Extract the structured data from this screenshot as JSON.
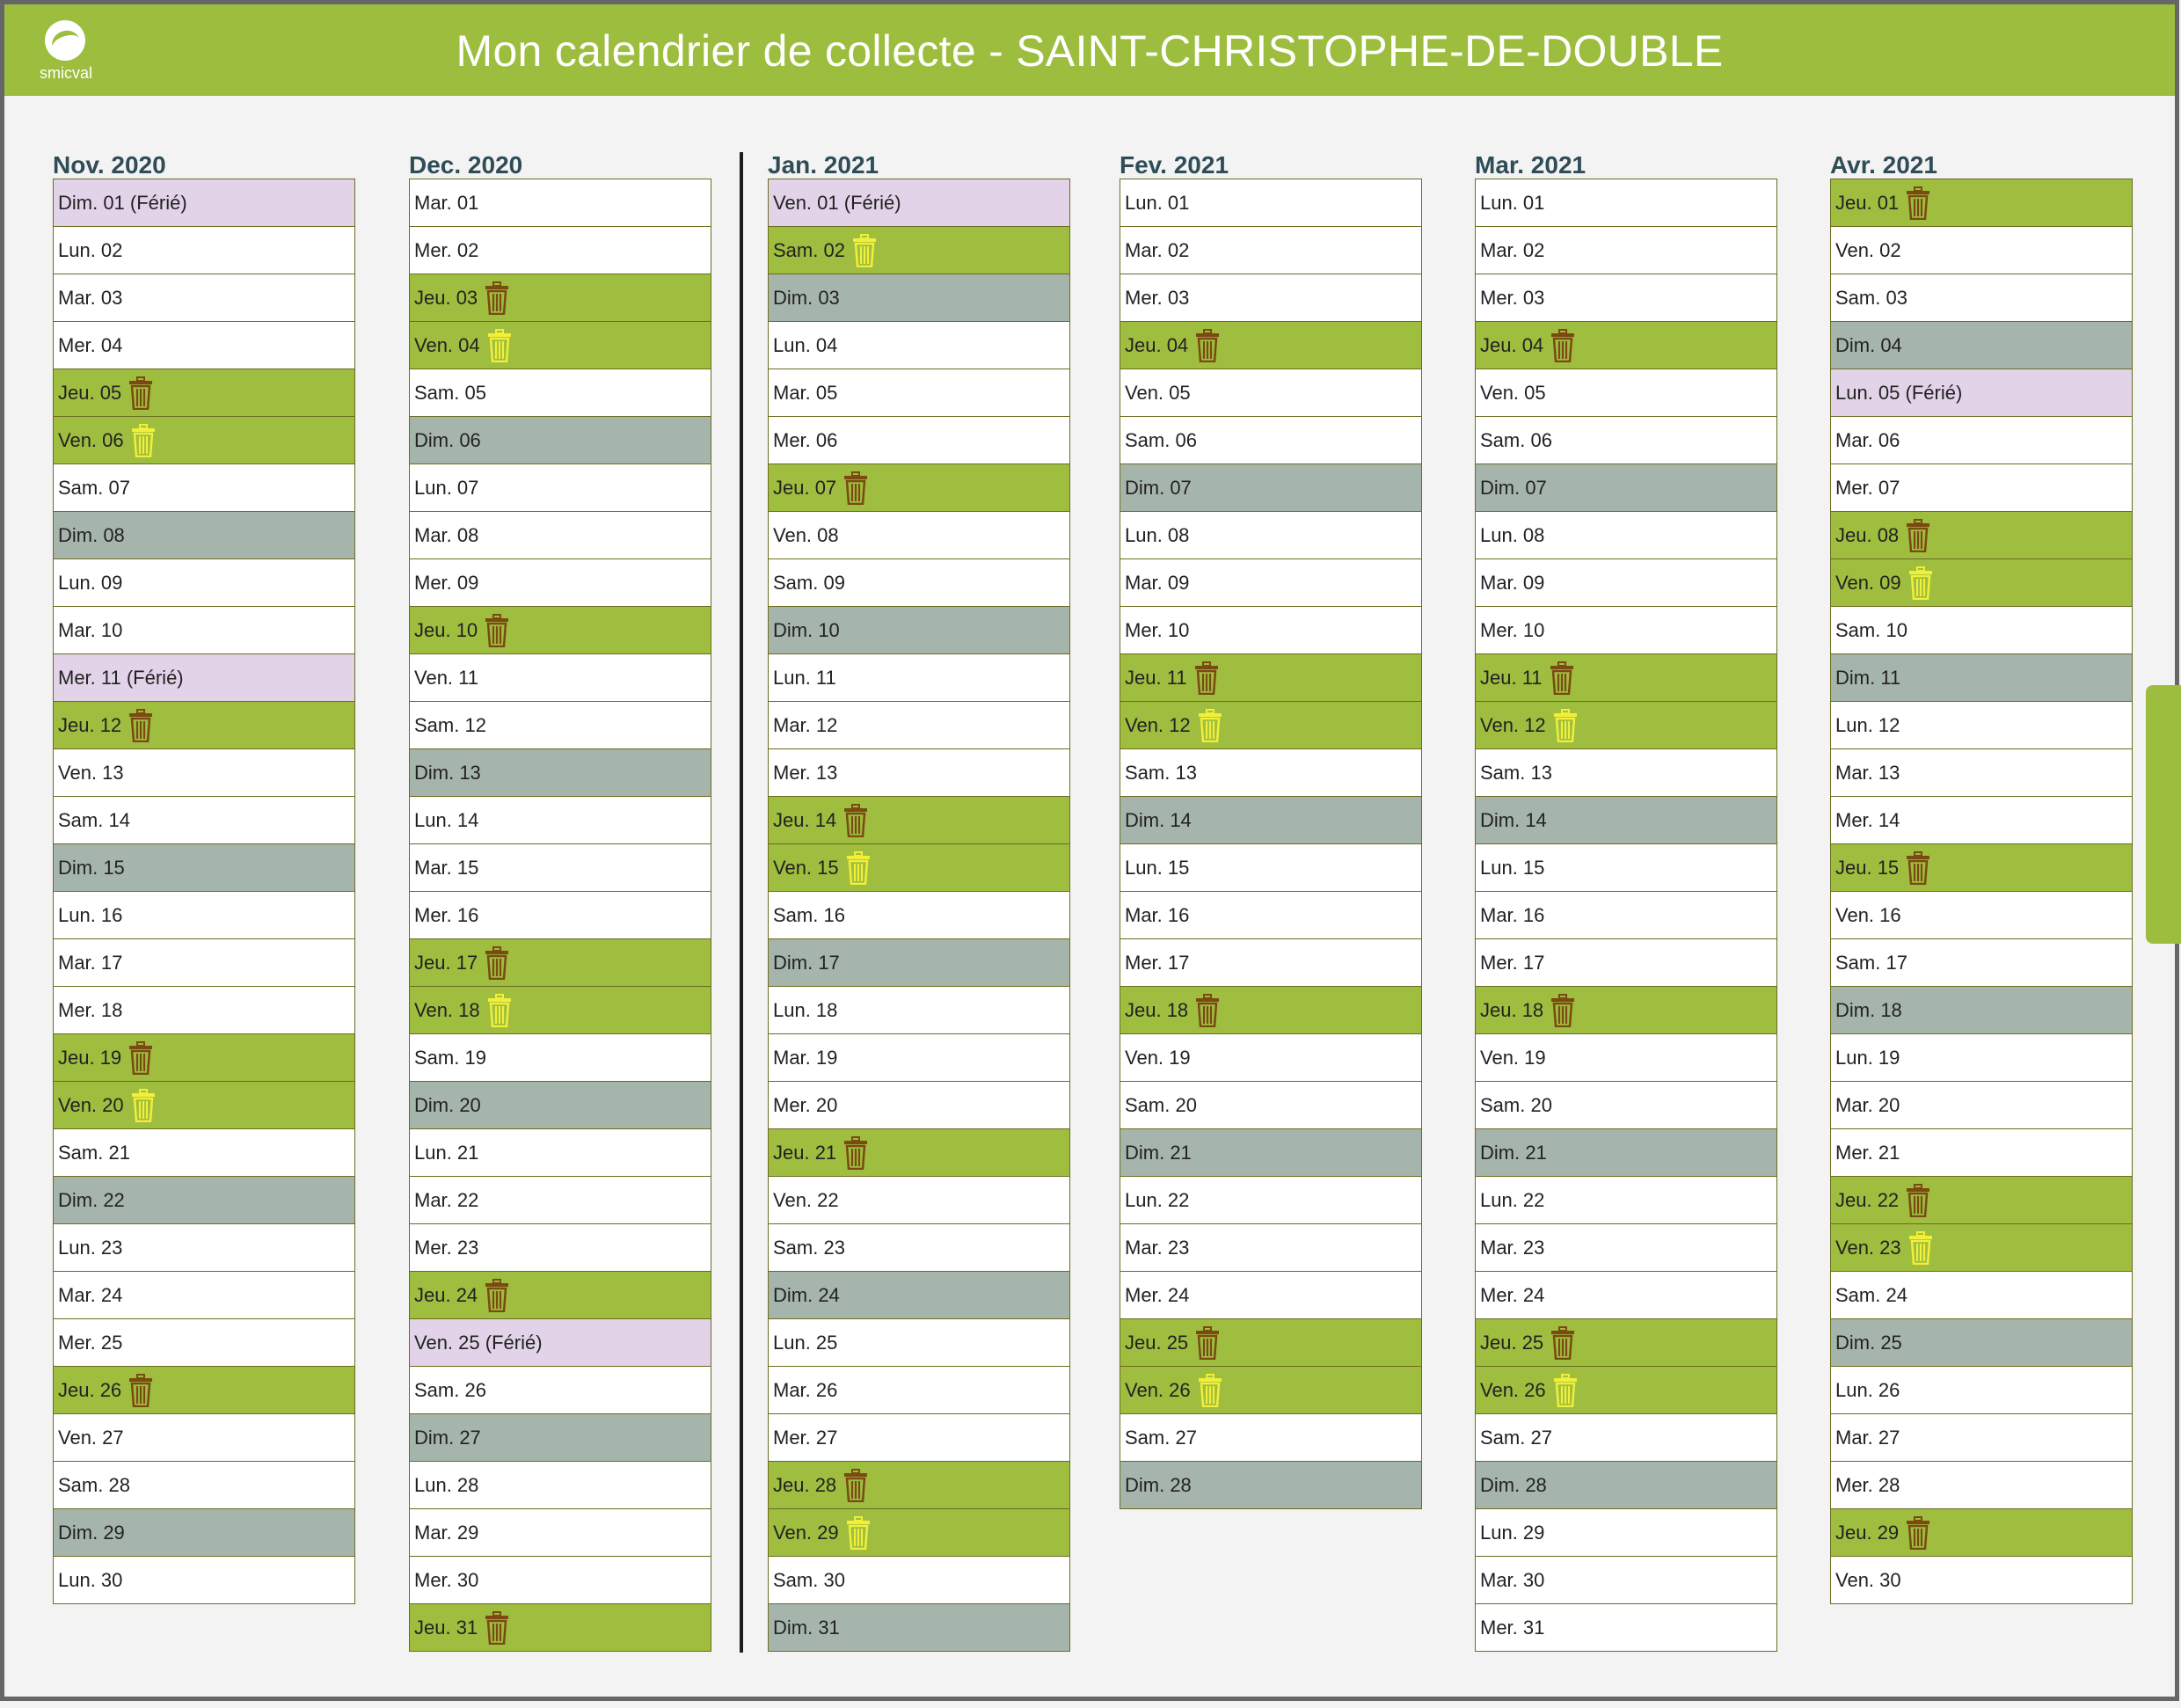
{
  "header": {
    "title": "Mon calendrier de collecte - SAINT-CHRISTOPHE-DE-DOUBLE",
    "logo_text": "smicval"
  },
  "colors": {
    "header": "#9cbd3e",
    "collect_day": "#9fbd3f",
    "sunday": "#a6b5ab",
    "holiday": "#e2d3e9",
    "bin_household": "#7a4a12",
    "bin_recycling": "#f1ef3a"
  },
  "icons": {
    "household": "trash-bin-icon-brown",
    "recycling": "trash-bin-icon-yellow"
  },
  "months": [
    {
      "title": "Nov. 2020",
      "days": [
        {
          "label": "Dim. 01 (Férié)",
          "type": "holiday"
        },
        {
          "label": "Lun. 02",
          "type": "white"
        },
        {
          "label": "Mar. 03",
          "type": "white"
        },
        {
          "label": "Mer. 04",
          "type": "white"
        },
        {
          "label": "Jeu. 05",
          "type": "collect",
          "bin": "household"
        },
        {
          "label": "Ven. 06",
          "type": "collect",
          "bin": "recycling"
        },
        {
          "label": "Sam. 07",
          "type": "white"
        },
        {
          "label": "Dim. 08",
          "type": "sunday"
        },
        {
          "label": "Lun. 09",
          "type": "white"
        },
        {
          "label": "Mar. 10",
          "type": "white"
        },
        {
          "label": "Mer. 11 (Férié)",
          "type": "holiday"
        },
        {
          "label": "Jeu. 12",
          "type": "collect",
          "bin": "household"
        },
        {
          "label": "Ven. 13",
          "type": "white"
        },
        {
          "label": "Sam. 14",
          "type": "white"
        },
        {
          "label": "Dim. 15",
          "type": "sunday"
        },
        {
          "label": "Lun. 16",
          "type": "white"
        },
        {
          "label": "Mar. 17",
          "type": "white"
        },
        {
          "label": "Mer. 18",
          "type": "white"
        },
        {
          "label": "Jeu. 19",
          "type": "collect",
          "bin": "household"
        },
        {
          "label": "Ven. 20",
          "type": "collect",
          "bin": "recycling"
        },
        {
          "label": "Sam. 21",
          "type": "white"
        },
        {
          "label": "Dim. 22",
          "type": "sunday"
        },
        {
          "label": "Lun. 23",
          "type": "white"
        },
        {
          "label": "Mar. 24",
          "type": "white"
        },
        {
          "label": "Mer. 25",
          "type": "white"
        },
        {
          "label": "Jeu. 26",
          "type": "collect",
          "bin": "household"
        },
        {
          "label": "Ven. 27",
          "type": "white"
        },
        {
          "label": "Sam. 28",
          "type": "white"
        },
        {
          "label": "Dim. 29",
          "type": "sunday"
        },
        {
          "label": "Lun. 30",
          "type": "white"
        }
      ]
    },
    {
      "title": "Dec. 2020",
      "days": [
        {
          "label": "Mar. 01",
          "type": "white"
        },
        {
          "label": "Mer. 02",
          "type": "white"
        },
        {
          "label": "Jeu. 03",
          "type": "collect",
          "bin": "household"
        },
        {
          "label": "Ven. 04",
          "type": "collect",
          "bin": "recycling"
        },
        {
          "label": "Sam. 05",
          "type": "white"
        },
        {
          "label": "Dim. 06",
          "type": "sunday"
        },
        {
          "label": "Lun. 07",
          "type": "white"
        },
        {
          "label": "Mar. 08",
          "type": "white"
        },
        {
          "label": "Mer. 09",
          "type": "white"
        },
        {
          "label": "Jeu. 10",
          "type": "collect",
          "bin": "household"
        },
        {
          "label": "Ven. 11",
          "type": "white"
        },
        {
          "label": "Sam. 12",
          "type": "white"
        },
        {
          "label": "Dim. 13",
          "type": "sunday"
        },
        {
          "label": "Lun. 14",
          "type": "white"
        },
        {
          "label": "Mar. 15",
          "type": "white"
        },
        {
          "label": "Mer. 16",
          "type": "white"
        },
        {
          "label": "Jeu. 17",
          "type": "collect",
          "bin": "household"
        },
        {
          "label": "Ven. 18",
          "type": "collect",
          "bin": "recycling"
        },
        {
          "label": "Sam. 19",
          "type": "white"
        },
        {
          "label": "Dim. 20",
          "type": "sunday"
        },
        {
          "label": "Lun. 21",
          "type": "white"
        },
        {
          "label": "Mar. 22",
          "type": "white"
        },
        {
          "label": "Mer. 23",
          "type": "white"
        },
        {
          "label": "Jeu. 24",
          "type": "collect",
          "bin": "household"
        },
        {
          "label": "Ven. 25 (Férié)",
          "type": "holiday"
        },
        {
          "label": "Sam. 26",
          "type": "white"
        },
        {
          "label": "Dim. 27",
          "type": "sunday"
        },
        {
          "label": "Lun. 28",
          "type": "white"
        },
        {
          "label": "Mar. 29",
          "type": "white"
        },
        {
          "label": "Mer. 30",
          "type": "white"
        },
        {
          "label": "Jeu. 31",
          "type": "collect",
          "bin": "household"
        }
      ]
    },
    {
      "title": "Jan. 2021",
      "days": [
        {
          "label": "Ven. 01 (Férié)",
          "type": "holiday"
        },
        {
          "label": "Sam. 02",
          "type": "collect",
          "bin": "recycling"
        },
        {
          "label": "Dim. 03",
          "type": "sunday"
        },
        {
          "label": "Lun. 04",
          "type": "white"
        },
        {
          "label": "Mar. 05",
          "type": "white"
        },
        {
          "label": "Mer. 06",
          "type": "white"
        },
        {
          "label": "Jeu. 07",
          "type": "collect",
          "bin": "household"
        },
        {
          "label": "Ven. 08",
          "type": "white"
        },
        {
          "label": "Sam. 09",
          "type": "white"
        },
        {
          "label": "Dim. 10",
          "type": "sunday"
        },
        {
          "label": "Lun. 11",
          "type": "white"
        },
        {
          "label": "Mar. 12",
          "type": "white"
        },
        {
          "label": "Mer. 13",
          "type": "white"
        },
        {
          "label": "Jeu. 14",
          "type": "collect",
          "bin": "household"
        },
        {
          "label": "Ven. 15",
          "type": "collect",
          "bin": "recycling"
        },
        {
          "label": "Sam. 16",
          "type": "white"
        },
        {
          "label": "Dim. 17",
          "type": "sunday"
        },
        {
          "label": "Lun. 18",
          "type": "white"
        },
        {
          "label": "Mar. 19",
          "type": "white"
        },
        {
          "label": "Mer. 20",
          "type": "white"
        },
        {
          "label": "Jeu. 21",
          "type": "collect",
          "bin": "household"
        },
        {
          "label": "Ven. 22",
          "type": "white"
        },
        {
          "label": "Sam. 23",
          "type": "white"
        },
        {
          "label": "Dim. 24",
          "type": "sunday"
        },
        {
          "label": "Lun. 25",
          "type": "white"
        },
        {
          "label": "Mar. 26",
          "type": "white"
        },
        {
          "label": "Mer. 27",
          "type": "white"
        },
        {
          "label": "Jeu. 28",
          "type": "collect",
          "bin": "household"
        },
        {
          "label": "Ven. 29",
          "type": "collect",
          "bin": "recycling"
        },
        {
          "label": "Sam. 30",
          "type": "white"
        },
        {
          "label": "Dim. 31",
          "type": "sunday"
        }
      ]
    },
    {
      "title": "Fev. 2021",
      "days": [
        {
          "label": "Lun. 01",
          "type": "white"
        },
        {
          "label": "Mar. 02",
          "type": "white"
        },
        {
          "label": "Mer. 03",
          "type": "white"
        },
        {
          "label": "Jeu. 04",
          "type": "collect",
          "bin": "household"
        },
        {
          "label": "Ven. 05",
          "type": "white"
        },
        {
          "label": "Sam. 06",
          "type": "white"
        },
        {
          "label": "Dim. 07",
          "type": "sunday"
        },
        {
          "label": "Lun. 08",
          "type": "white"
        },
        {
          "label": "Mar. 09",
          "type": "white"
        },
        {
          "label": "Mer. 10",
          "type": "white"
        },
        {
          "label": "Jeu. 11",
          "type": "collect",
          "bin": "household"
        },
        {
          "label": "Ven. 12",
          "type": "collect",
          "bin": "recycling"
        },
        {
          "label": "Sam. 13",
          "type": "white"
        },
        {
          "label": "Dim. 14",
          "type": "sunday"
        },
        {
          "label": "Lun. 15",
          "type": "white"
        },
        {
          "label": "Mar. 16",
          "type": "white"
        },
        {
          "label": "Mer. 17",
          "type": "white"
        },
        {
          "label": "Jeu. 18",
          "type": "collect",
          "bin": "household"
        },
        {
          "label": "Ven. 19",
          "type": "white"
        },
        {
          "label": "Sam. 20",
          "type": "white"
        },
        {
          "label": "Dim. 21",
          "type": "sunday"
        },
        {
          "label": "Lun. 22",
          "type": "white"
        },
        {
          "label": "Mar. 23",
          "type": "white"
        },
        {
          "label": "Mer. 24",
          "type": "white"
        },
        {
          "label": "Jeu. 25",
          "type": "collect",
          "bin": "household"
        },
        {
          "label": "Ven. 26",
          "type": "collect",
          "bin": "recycling"
        },
        {
          "label": "Sam. 27",
          "type": "white"
        },
        {
          "label": "Dim. 28",
          "type": "sunday"
        }
      ]
    },
    {
      "title": "Mar. 2021",
      "days": [
        {
          "label": "Lun. 01",
          "type": "white"
        },
        {
          "label": "Mar. 02",
          "type": "white"
        },
        {
          "label": "Mer. 03",
          "type": "white"
        },
        {
          "label": "Jeu. 04",
          "type": "collect",
          "bin": "household"
        },
        {
          "label": "Ven. 05",
          "type": "white"
        },
        {
          "label": "Sam. 06",
          "type": "white"
        },
        {
          "label": "Dim. 07",
          "type": "sunday"
        },
        {
          "label": "Lun. 08",
          "type": "white"
        },
        {
          "label": "Mar. 09",
          "type": "white"
        },
        {
          "label": "Mer. 10",
          "type": "white"
        },
        {
          "label": "Jeu. 11",
          "type": "collect",
          "bin": "household"
        },
        {
          "label": "Ven. 12",
          "type": "collect",
          "bin": "recycling"
        },
        {
          "label": "Sam. 13",
          "type": "white"
        },
        {
          "label": "Dim. 14",
          "type": "sunday"
        },
        {
          "label": "Lun. 15",
          "type": "white"
        },
        {
          "label": "Mar. 16",
          "type": "white"
        },
        {
          "label": "Mer. 17",
          "type": "white"
        },
        {
          "label": "Jeu. 18",
          "type": "collect",
          "bin": "household"
        },
        {
          "label": "Ven. 19",
          "type": "white"
        },
        {
          "label": "Sam. 20",
          "type": "white"
        },
        {
          "label": "Dim. 21",
          "type": "sunday"
        },
        {
          "label": "Lun. 22",
          "type": "white"
        },
        {
          "label": "Mar. 23",
          "type": "white"
        },
        {
          "label": "Mer. 24",
          "type": "white"
        },
        {
          "label": "Jeu. 25",
          "type": "collect",
          "bin": "household"
        },
        {
          "label": "Ven. 26",
          "type": "collect",
          "bin": "recycling"
        },
        {
          "label": "Sam. 27",
          "type": "white"
        },
        {
          "label": "Dim. 28",
          "type": "sunday"
        },
        {
          "label": "Lun. 29",
          "type": "white"
        },
        {
          "label": "Mar. 30",
          "type": "white"
        },
        {
          "label": "Mer. 31",
          "type": "white"
        }
      ]
    },
    {
      "title": "Avr. 2021",
      "days": [
        {
          "label": "Jeu. 01",
          "type": "collect",
          "bin": "household"
        },
        {
          "label": "Ven. 02",
          "type": "white"
        },
        {
          "label": "Sam. 03",
          "type": "white"
        },
        {
          "label": "Dim. 04",
          "type": "sunday"
        },
        {
          "label": "Lun. 05 (Férié)",
          "type": "holiday"
        },
        {
          "label": "Mar. 06",
          "type": "white"
        },
        {
          "label": "Mer. 07",
          "type": "white"
        },
        {
          "label": "Jeu. 08",
          "type": "collect",
          "bin": "household"
        },
        {
          "label": "Ven. 09",
          "type": "collect",
          "bin": "recycling"
        },
        {
          "label": "Sam. 10",
          "type": "white"
        },
        {
          "label": "Dim. 11",
          "type": "sunday"
        },
        {
          "label": "Lun. 12",
          "type": "white"
        },
        {
          "label": "Mar. 13",
          "type": "white"
        },
        {
          "label": "Mer. 14",
          "type": "white"
        },
        {
          "label": "Jeu. 15",
          "type": "collect",
          "bin": "household"
        },
        {
          "label": "Ven. 16",
          "type": "white"
        },
        {
          "label": "Sam. 17",
          "type": "white"
        },
        {
          "label": "Dim. 18",
          "type": "sunday"
        },
        {
          "label": "Lun. 19",
          "type": "white"
        },
        {
          "label": "Mar. 20",
          "type": "white"
        },
        {
          "label": "Mer. 21",
          "type": "white"
        },
        {
          "label": "Jeu. 22",
          "type": "collect",
          "bin": "household"
        },
        {
          "label": "Ven. 23",
          "type": "collect",
          "bin": "recycling"
        },
        {
          "label": "Sam. 24",
          "type": "white"
        },
        {
          "label": "Dim. 25",
          "type": "sunday"
        },
        {
          "label": "Lun. 26",
          "type": "white"
        },
        {
          "label": "Mar. 27",
          "type": "white"
        },
        {
          "label": "Mer. 28",
          "type": "white"
        },
        {
          "label": "Jeu. 29",
          "type": "collect",
          "bin": "household"
        },
        {
          "label": "Ven. 30",
          "type": "white"
        }
      ]
    }
  ]
}
